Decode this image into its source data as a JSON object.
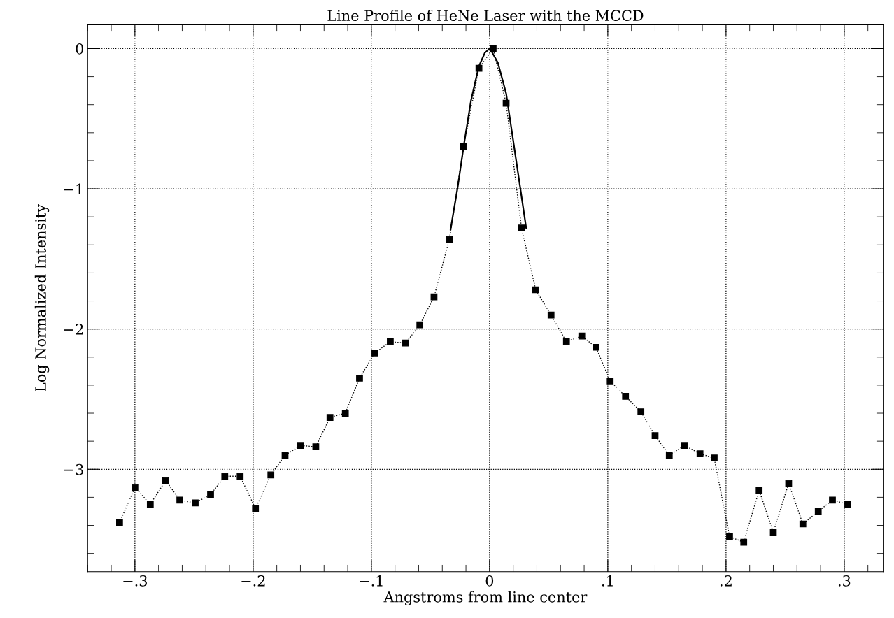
{
  "chart_data": {
    "type": "line",
    "title": "Line Profile of HeNe Laser with the MCCD",
    "xlabel": "Angstroms from line center",
    "ylabel": "Log Normalized Intensity",
    "xlim": [
      -0.34,
      0.333
    ],
    "ylim": [
      -3.73,
      0.17
    ],
    "xticks": [
      {
        "value": -0.3,
        "label": "−.3"
      },
      {
        "value": -0.2,
        "label": "−.2"
      },
      {
        "value": -0.1,
        "label": "−.1"
      },
      {
        "value": 0,
        "label": "0"
      },
      {
        "value": 0.1,
        "label": ".1"
      },
      {
        "value": 0.2,
        "label": ".2"
      },
      {
        "value": 0.3,
        "label": ".3"
      }
    ],
    "yticks": [
      {
        "value": -3,
        "label": "−3"
      },
      {
        "value": -2,
        "label": "−2"
      },
      {
        "value": -1,
        "label": "−1"
      },
      0
    ],
    "grid": true,
    "series": [
      {
        "color": "#000000",
        "marker": "square",
        "line_style": "dotted",
        "x": [
          -0.313,
          -0.3,
          -0.287,
          -0.274,
          -0.262,
          -0.249,
          -0.236,
          -0.224,
          -0.211,
          -0.198,
          -0.185,
          -0.173,
          -0.16,
          -0.147,
          -0.135,
          -0.122,
          -0.11,
          -0.097,
          -0.084,
          -0.071,
          -0.059,
          -0.047,
          -0.034,
          -0.022,
          -0.009,
          0.003,
          0.014,
          0.027,
          0.039,
          0.052,
          0.065,
          0.078,
          0.09,
          0.102,
          0.115,
          0.128,
          0.14,
          0.152,
          0.165,
          0.178,
          0.19,
          0.203,
          0.215,
          0.228,
          0.24,
          0.253,
          0.265,
          0.278,
          0.29,
          0.303
        ],
        "values": [
          -3.38,
          -3.13,
          -3.25,
          -3.08,
          -3.22,
          -3.24,
          -3.18,
          -3.05,
          -3.05,
          -3.28,
          -3.04,
          -2.9,
          -2.83,
          -2.84,
          -2.63,
          -2.6,
          -2.35,
          -2.17,
          -2.09,
          -2.1,
          -1.97,
          -1.77,
          -1.36,
          -0.7,
          -0.14,
          0.0,
          -0.39,
          -1.28,
          -1.72,
          -1.9,
          -2.09,
          -2.05,
          -2.13,
          -2.37,
          -2.48,
          -2.59,
          -2.76,
          -2.9,
          -2.83,
          -2.89,
          -2.92,
          -3.48,
          -3.52,
          -3.15,
          -3.45,
          -3.1,
          -3.39,
          -3.3,
          -3.22,
          -3.25
        ]
      },
      {
        "color": "#000000",
        "marker": "none",
        "line_style": "solid",
        "x": [
          -0.033,
          -0.027,
          -0.0216,
          -0.0157,
          -0.0092,
          -0.004,
          0.0,
          0.001,
          0.007,
          0.014,
          0.019,
          0.025,
          0.031
        ],
        "values": [
          -1.29,
          -0.99,
          -0.68,
          -0.37,
          -0.13,
          -0.03,
          0.0,
          -0.01,
          -0.1,
          -0.32,
          -0.6,
          -0.94,
          -1.28
        ]
      }
    ]
  }
}
